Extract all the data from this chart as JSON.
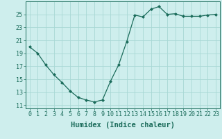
{
  "x": [
    0,
    1,
    2,
    3,
    4,
    5,
    6,
    7,
    8,
    9,
    10,
    11,
    12,
    13,
    14,
    15,
    16,
    17,
    18,
    19,
    20,
    21,
    22,
    23
  ],
  "y": [
    20.0,
    19.0,
    17.2,
    15.7,
    14.5,
    13.2,
    12.2,
    11.8,
    11.5,
    11.8,
    14.7,
    17.2,
    20.8,
    24.9,
    24.6,
    25.8,
    26.2,
    25.0,
    25.1,
    24.7,
    24.7,
    24.7,
    24.9,
    25.0
  ],
  "line_color": "#1a6b5a",
  "marker": "D",
  "marker_size": 2.0,
  "bg_color": "#ceeeed",
  "grid_color": "#a8d8d5",
  "xlabel": "Humidex (Indice chaleur)",
  "xlabel_fontsize": 7.5,
  "tick_fontsize": 6.0,
  "xlim": [
    -0.5,
    23.5
  ],
  "ylim": [
    10.5,
    27.0
  ],
  "yticks": [
    11,
    13,
    15,
    17,
    19,
    21,
    23,
    25
  ],
  "xticks": [
    0,
    1,
    2,
    3,
    4,
    5,
    6,
    7,
    8,
    9,
    10,
    11,
    12,
    13,
    14,
    15,
    16,
    17,
    18,
    19,
    20,
    21,
    22,
    23
  ]
}
